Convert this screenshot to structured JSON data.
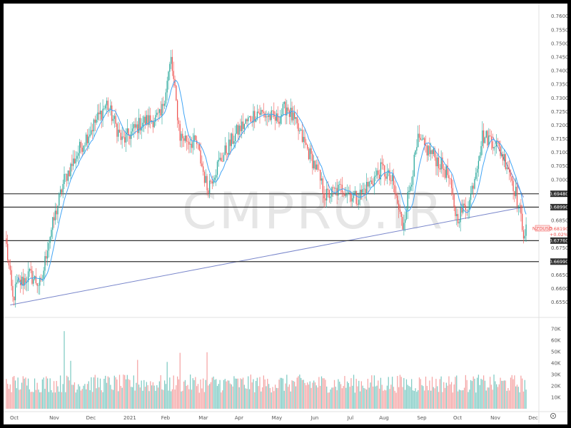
{
  "watermark": "CMPRO.IR",
  "symbol": "NZDUSD",
  "colors": {
    "up": "#26a69a",
    "down": "#ef5350",
    "up_vol": "#80cbc4",
    "down_vol": "#f5a5a5",
    "ma": "#42a5f5",
    "line": "#333333",
    "trend": "#7986cb"
  },
  "chart_data": {
    "type": "candlestick",
    "x_tick_labels": [
      "Oct",
      "Nov",
      "Dec",
      "2021",
      "Feb",
      "Mar",
      "Apr",
      "May",
      "Jun",
      "Jul",
      "Aug",
      "Sep",
      "Oct",
      "Nov",
      "Dec"
    ],
    "y_tick_labels": [
      "0.76000",
      "0.75500",
      "0.75000",
      "0.74500",
      "0.74000",
      "0.73500",
      "0.73000",
      "0.72500",
      "0.72000",
      "0.71500",
      "0.71000",
      "0.70500",
      "0.70000",
      "0.69500",
      "0.69000",
      "0.68500",
      "0.68000",
      "0.67500",
      "0.67000",
      "0.66500",
      "0.66000",
      "0.65500"
    ],
    "ylim": [
      0.6515,
      0.7615
    ],
    "volume_tick_labels": [
      "70K",
      "60K",
      "50K",
      "40K",
      "30K",
      "20K",
      "10K"
    ],
    "volume_ylim": [
      0,
      75000
    ],
    "price_anchors": [
      [
        0,
        0.6755
      ],
      [
        5,
        0.656
      ],
      [
        8,
        0.661
      ],
      [
        18,
        0.665
      ],
      [
        27,
        0.661
      ],
      [
        32,
        0.676
      ],
      [
        45,
        0.7
      ],
      [
        60,
        0.714
      ],
      [
        78,
        0.728
      ],
      [
        90,
        0.714
      ],
      [
        105,
        0.721
      ],
      [
        120,
        0.723
      ],
      [
        128,
        0.744
      ],
      [
        135,
        0.716
      ],
      [
        148,
        0.713
      ],
      [
        156,
        0.697
      ],
      [
        165,
        0.706
      ],
      [
        180,
        0.718
      ],
      [
        195,
        0.725
      ],
      [
        210,
        0.722
      ],
      [
        218,
        0.727
      ],
      [
        230,
        0.715
      ],
      [
        240,
        0.705
      ],
      [
        248,
        0.694
      ],
      [
        262,
        0.697
      ],
      [
        272,
        0.693
      ],
      [
        285,
        0.7
      ],
      [
        292,
        0.704
      ],
      [
        300,
        0.699
      ],
      [
        308,
        0.683
      ],
      [
        320,
        0.714
      ],
      [
        332,
        0.709
      ],
      [
        343,
        0.702
      ],
      [
        350,
        0.686
      ],
      [
        360,
        0.692
      ],
      [
        370,
        0.716
      ],
      [
        380,
        0.714
      ],
      [
        390,
        0.705
      ],
      [
        396,
        0.695
      ],
      [
        402,
        0.681
      ]
    ],
    "horizontal_lines": [
      {
        "value": 0.6948,
        "label": "0.69480"
      },
      {
        "value": 0.6899,
        "label": "0.68990"
      },
      {
        "value": 0.6776,
        "label": "0.67760"
      },
      {
        "value": 0.6699,
        "label": "0.66990"
      }
    ],
    "current_price": {
      "value": 0.6819,
      "label": "0.68190",
      "change": "+0.02%"
    },
    "trendlines": [
      {
        "from": [
          3,
          0.654
        ],
        "to": [
          402,
          0.6899
        ]
      },
      {
        "from": [
          378,
          0.7158
        ],
        "to": [
          402,
          0.6935
        ]
      }
    ]
  }
}
